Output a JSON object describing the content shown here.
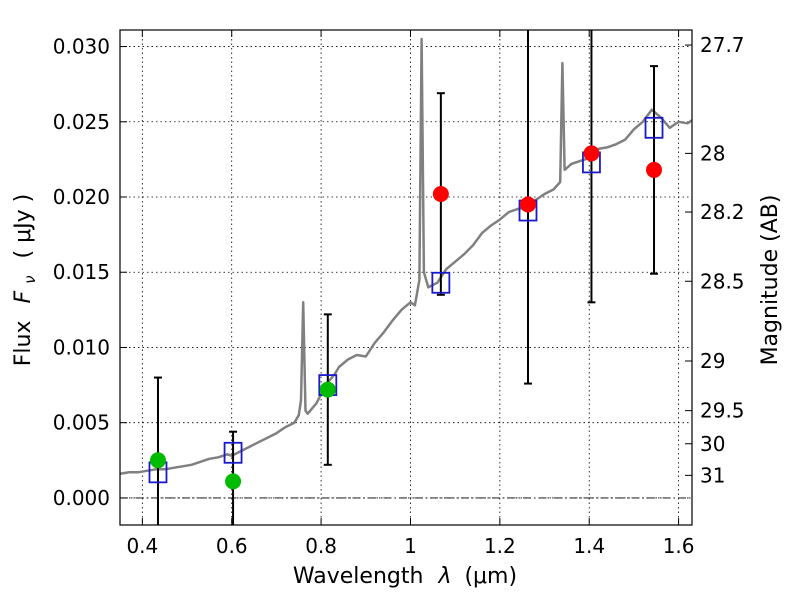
{
  "chart_data": {
    "type": "scatter",
    "xlabel_text": "Wavelength",
    "xlabel_math": "λ",
    "xlabel_unit": "(μm)",
    "ylabel_text": "Flux",
    "ylabel_math": "F",
    "ylabel_math_sub": "ν",
    "ylabel_unit": "( μJy )",
    "y2label": "Magnitude (AB)",
    "xlim": [
      0.35,
      1.63
    ],
    "ylim": [
      -0.0018,
      0.0311
    ],
    "x_ticks": [
      0.4,
      0.6,
      0.8,
      1.0,
      1.2,
      1.4,
      1.6
    ],
    "x_tick_labels": [
      "0.4",
      "0.6",
      "0.8",
      "1",
      "1.2",
      "1.4",
      "1.6"
    ],
    "y_ticks": [
      0.0,
      0.005,
      0.01,
      0.015,
      0.02,
      0.025,
      0.03
    ],
    "y_tick_labels": [
      "0.000",
      "0.005",
      "0.010",
      "0.015",
      "0.020",
      "0.025",
      "0.030"
    ],
    "y2_ticks": [
      {
        "label": "27.7",
        "flux": 0.0301
      },
      {
        "label": "28",
        "flux": 0.0229
      },
      {
        "label": "28.2",
        "flux": 0.019
      },
      {
        "label": "28.5",
        "flux": 0.0144
      },
      {
        "label": "29",
        "flux": 0.0091
      },
      {
        "label": "29.5",
        "flux": 0.0058
      },
      {
        "label": "30",
        "flux": 0.0036
      },
      {
        "label": "31",
        "flux": 0.0015
      }
    ],
    "grid": true,
    "grid_style": "dotted",
    "zero_line": true,
    "colors": {
      "spectrum": "#808080",
      "model_box": "#1a1acc",
      "detection": "#ff0000",
      "upper": "#00bb00",
      "errorbar": "#000000"
    },
    "series": [
      {
        "kind": "line",
        "points": [
          [
            0.35,
            0.0016
          ],
          [
            0.37,
            0.0017
          ],
          [
            0.39,
            0.0017
          ],
          [
            0.41,
            0.0018
          ],
          [
            0.43,
            0.0019
          ],
          [
            0.45,
            0.0019
          ],
          [
            0.47,
            0.002
          ],
          [
            0.49,
            0.0021
          ],
          [
            0.51,
            0.0022
          ],
          [
            0.53,
            0.0024
          ],
          [
            0.55,
            0.0026
          ],
          [
            0.57,
            0.0027
          ],
          [
            0.59,
            0.0029
          ],
          [
            0.6,
            0.0028
          ],
          [
            0.62,
            0.0031
          ],
          [
            0.64,
            0.0034
          ],
          [
            0.66,
            0.0037
          ],
          [
            0.68,
            0.004
          ],
          [
            0.7,
            0.0043
          ],
          [
            0.72,
            0.0047
          ],
          [
            0.74,
            0.005
          ],
          [
            0.75,
            0.0055
          ],
          [
            0.755,
            0.0065
          ],
          [
            0.76,
            0.013
          ],
          [
            0.765,
            0.0058
          ],
          [
            0.77,
            0.0056
          ],
          [
            0.79,
            0.0063
          ],
          [
            0.81,
            0.0075
          ],
          [
            0.83,
            0.0082
          ],
          [
            0.84,
            0.0087
          ],
          [
            0.86,
            0.0092
          ],
          [
            0.88,
            0.0095
          ],
          [
            0.9,
            0.0094
          ],
          [
            0.92,
            0.0103
          ],
          [
            0.94,
            0.011
          ],
          [
            0.96,
            0.0118
          ],
          [
            0.98,
            0.0125
          ],
          [
            1.0,
            0.013
          ],
          [
            1.01,
            0.0128
          ],
          [
            1.02,
            0.0145
          ],
          [
            1.025,
            0.0305
          ],
          [
            1.03,
            0.015
          ],
          [
            1.04,
            0.014
          ],
          [
            1.06,
            0.0143
          ],
          [
            1.08,
            0.0152
          ],
          [
            1.1,
            0.0157
          ],
          [
            1.12,
            0.0162
          ],
          [
            1.14,
            0.0168
          ],
          [
            1.16,
            0.0176
          ],
          [
            1.18,
            0.0181
          ],
          [
            1.2,
            0.0185
          ],
          [
            1.22,
            0.019
          ],
          [
            1.24,
            0.0192
          ],
          [
            1.26,
            0.0193
          ],
          [
            1.28,
            0.0198
          ],
          [
            1.3,
            0.0202
          ],
          [
            1.32,
            0.0205
          ],
          [
            1.335,
            0.021
          ],
          [
            1.34,
            0.0289
          ],
          [
            1.345,
            0.0218
          ],
          [
            1.36,
            0.0222
          ],
          [
            1.38,
            0.0224
          ],
          [
            1.4,
            0.0226
          ],
          [
            1.42,
            0.0232
          ],
          [
            1.44,
            0.0233
          ],
          [
            1.46,
            0.0235
          ],
          [
            1.48,
            0.0238
          ],
          [
            1.5,
            0.0245
          ],
          [
            1.52,
            0.025
          ],
          [
            1.54,
            0.0258
          ],
          [
            1.56,
            0.0253
          ],
          [
            1.58,
            0.0246
          ],
          [
            1.6,
            0.025
          ],
          [
            1.62,
            0.0249
          ],
          [
            1.63,
            0.0251
          ]
        ]
      },
      {
        "kind": "model_box",
        "points": [
          [
            0.435,
            0.0017
          ],
          [
            0.603,
            0.003
          ],
          [
            0.815,
            0.0075
          ],
          [
            1.068,
            0.0143
          ],
          [
            1.263,
            0.0191
          ],
          [
            1.405,
            0.0223
          ],
          [
            1.545,
            0.0246
          ]
        ]
      },
      {
        "kind": "detection",
        "points": [
          [
            1.068,
            0.0202
          ],
          [
            1.263,
            0.0195
          ],
          [
            1.405,
            0.0229
          ],
          [
            1.545,
            0.0218
          ]
        ]
      },
      {
        "kind": "upper",
        "points": [
          [
            0.435,
            0.0025
          ],
          [
            0.603,
            0.0011
          ],
          [
            0.815,
            0.0072
          ]
        ]
      },
      {
        "kind": "errorbar",
        "bars": [
          [
            0.435,
            -0.002,
            0.008
          ],
          [
            0.603,
            -0.002,
            0.0044
          ],
          [
            0.815,
            0.0022,
            0.0122
          ],
          [
            1.068,
            0.0135,
            0.0269
          ],
          [
            1.263,
            0.0076,
            0.0318
          ],
          [
            1.405,
            0.013,
            0.0318
          ],
          [
            1.545,
            0.0149,
            0.0287
          ]
        ]
      }
    ]
  }
}
